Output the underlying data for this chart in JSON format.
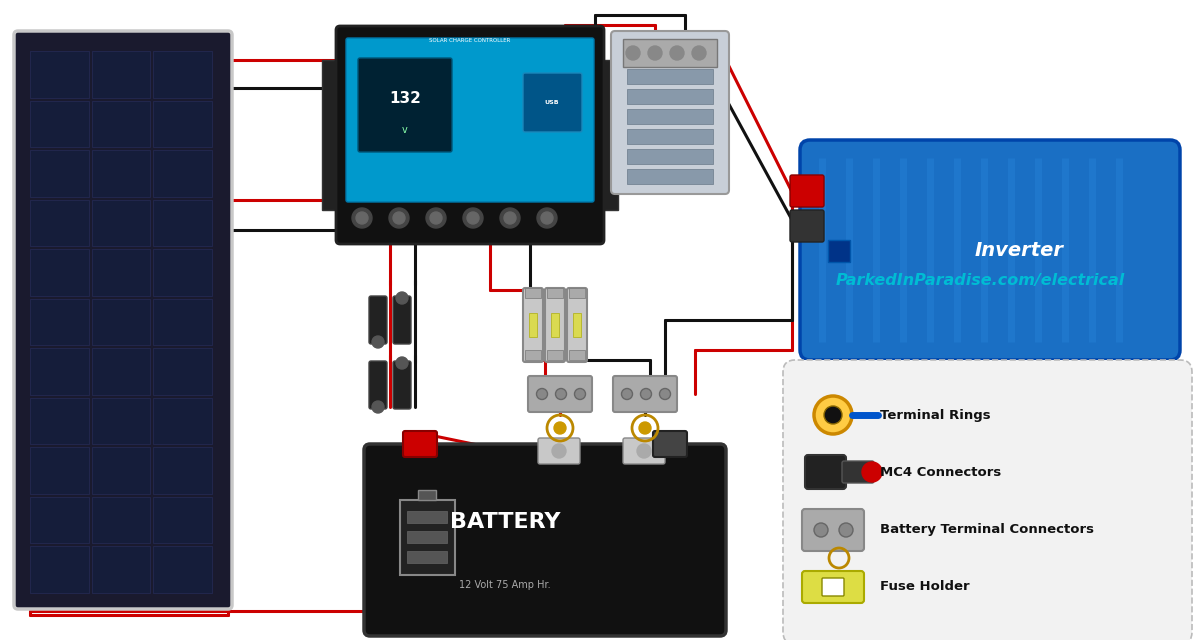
{
  "bg_color": "#ffffff",
  "website_text": "ParkedInParadise.com/electrical",
  "website_color": "#00bcd4",
  "wire_red": "#cc0000",
  "wire_black": "#111111",
  "legend_bg": "#f0f0f0",
  "legend_border": "#bbbbbb",
  "legend_items": [
    {
      "label": "Terminal Rings"
    },
    {
      "label": "MC4 Connectors"
    },
    {
      "label": "Battery Terminal Connectors"
    },
    {
      "label": "Fuse Holder"
    }
  ]
}
